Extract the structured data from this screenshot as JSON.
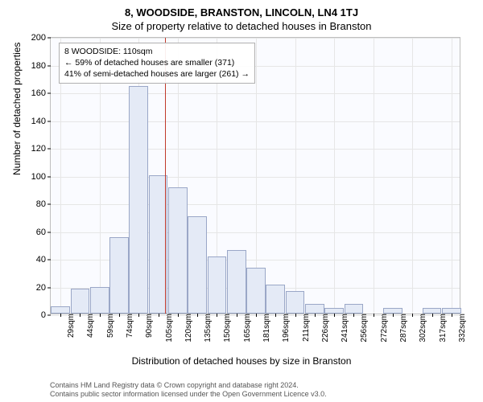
{
  "title_main": "8, WOODSIDE, BRANSTON, LINCOLN, LN4 1TJ",
  "title_sub": "Size of property relative to detached houses in Branston",
  "ylabel": "Number of detached properties",
  "xlabel": "Distribution of detached houses by size in Branston",
  "chart": {
    "type": "histogram",
    "background_color": "#fafbff",
    "grid_color": "#e6e6e6",
    "border_color": "#bfbfbf",
    "bar_fill": "#e4eaf6",
    "bar_border": "#9aa7c7",
    "ylim": [
      0,
      200
    ],
    "yticks": [
      0,
      20,
      40,
      60,
      80,
      100,
      120,
      140,
      160,
      180,
      200
    ],
    "x_categories": [
      "29sqm",
      "44sqm",
      "59sqm",
      "74sqm",
      "90sqm",
      "105sqm",
      "120sqm",
      "135sqm",
      "150sqm",
      "165sqm",
      "181sqm",
      "196sqm",
      "211sqm",
      "226sqm",
      "241sqm",
      "256sqm",
      "272sqm",
      "287sqm",
      "302sqm",
      "317sqm",
      "332sqm"
    ],
    "values": [
      5,
      18,
      19,
      55,
      164,
      100,
      91,
      70,
      41,
      46,
      33,
      21,
      16,
      7,
      4,
      7,
      0,
      4,
      0,
      4,
      4
    ],
    "ref_line": {
      "x_value": 110,
      "color": "#c0392b"
    },
    "annot": {
      "line1": "8 WOODSIDE: 110sqm",
      "line2": "← 59% of detached houses are smaller (371)",
      "line3": "41% of semi-detached houses are larger (261) →"
    },
    "title_fontsize": 13,
    "label_fontsize": 12,
    "tick_fontsize": 11
  },
  "footer": {
    "line1": "Contains HM Land Registry data © Crown copyright and database right 2024.",
    "line2": "Contains public sector information licensed under the Open Government Licence v3.0."
  }
}
